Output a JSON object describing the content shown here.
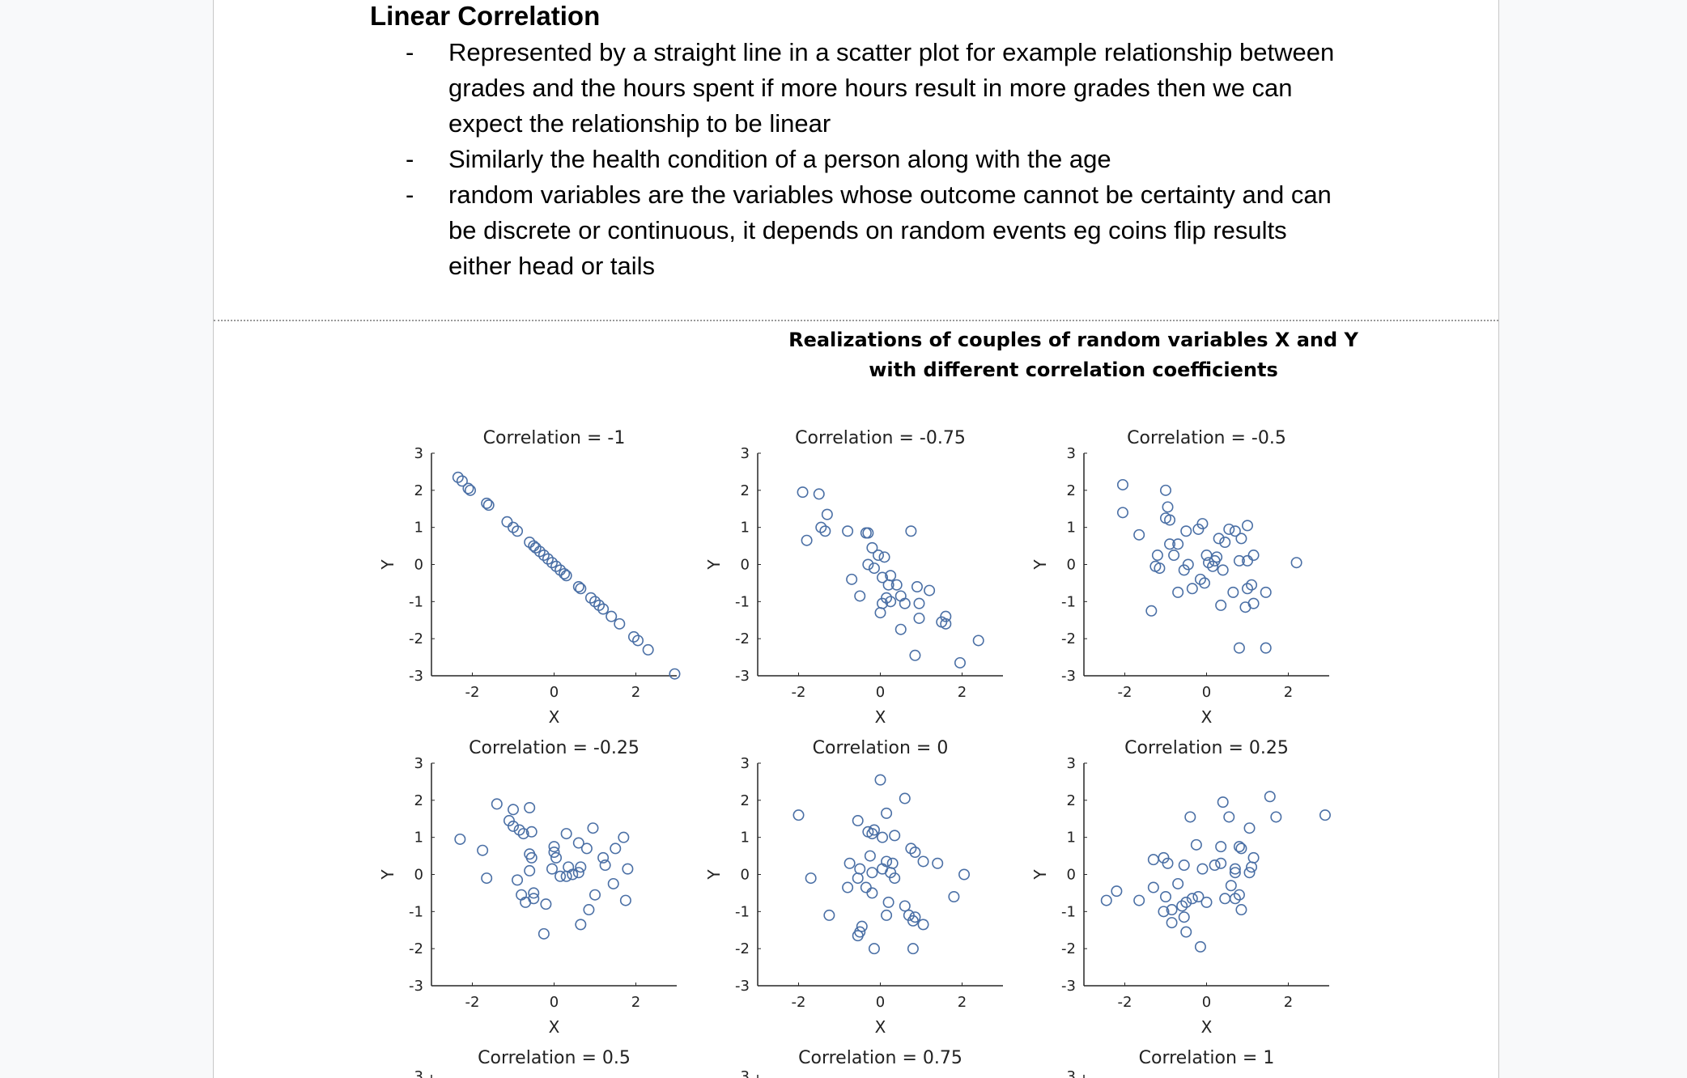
{
  "document": {
    "heading": "Linear Correlation",
    "bullets": [
      "Represented by a straight line in a scatter plot for example relationship between grades and the hours spent if more hours result in more grades then we can expect the relationship to be linear",
      "Similarly the health condition of a person along with the age",
      "random variables are the variables whose outcome cannot be certainty and can be discrete or continuous, it depends on random events eg coins flip results either head or tails"
    ],
    "bullet_marker": "-"
  },
  "chart_data": {
    "type": "scatter",
    "title": "Realizations of couples of random variables X and Y",
    "subtitle": "with different correlation coefficients",
    "marker_color": "#4a6fa5",
    "xlim": [
      -3,
      3
    ],
    "ylim": [
      -3,
      3
    ],
    "xticks": [
      "-2",
      "0",
      "2"
    ],
    "yticks": [
      "3",
      "2",
      "1",
      "0",
      "-1",
      "-2",
      "-3"
    ],
    "xlabel": "X",
    "ylabel": "Y",
    "panels": [
      {
        "title": "Correlation = -1",
        "points": [
          [
            -2.35,
            2.35
          ],
          [
            -2.25,
            2.25
          ],
          [
            -2.1,
            2.05
          ],
          [
            -2.05,
            2.0
          ],
          [
            -1.65,
            1.65
          ],
          [
            -1.6,
            1.6
          ],
          [
            -1.15,
            1.15
          ],
          [
            -1.0,
            1.0
          ],
          [
            -0.9,
            0.9
          ],
          [
            -0.6,
            0.6
          ],
          [
            -0.5,
            0.5
          ],
          [
            -0.45,
            0.45
          ],
          [
            -0.35,
            0.35
          ],
          [
            -0.25,
            0.25
          ],
          [
            -0.15,
            0.15
          ],
          [
            -0.05,
            0.05
          ],
          [
            0.05,
            -0.05
          ],
          [
            0.15,
            -0.15
          ],
          [
            0.25,
            -0.25
          ],
          [
            0.3,
            -0.3
          ],
          [
            0.6,
            -0.6
          ],
          [
            0.65,
            -0.65
          ],
          [
            0.9,
            -0.9
          ],
          [
            1.0,
            -1.0
          ],
          [
            1.1,
            -1.1
          ],
          [
            1.2,
            -1.2
          ],
          [
            1.4,
            -1.4
          ],
          [
            1.6,
            -1.6
          ],
          [
            1.95,
            -1.95
          ],
          [
            2.05,
            -2.05
          ],
          [
            2.3,
            -2.3
          ],
          [
            2.95,
            -2.95
          ]
        ]
      },
      {
        "title": "Correlation = -0.75",
        "points": [
          [
            -1.9,
            1.95
          ],
          [
            -1.5,
            1.9
          ],
          [
            -1.3,
            1.35
          ],
          [
            -1.45,
            1.0
          ],
          [
            -1.35,
            0.9
          ],
          [
            -1.8,
            0.65
          ],
          [
            -0.8,
            0.9
          ],
          [
            -0.35,
            0.85
          ],
          [
            -0.3,
            0.85
          ],
          [
            0.75,
            0.9
          ],
          [
            -0.2,
            0.45
          ],
          [
            -0.05,
            0.25
          ],
          [
            0.1,
            0.2
          ],
          [
            -0.3,
            0.0
          ],
          [
            -0.15,
            -0.1
          ],
          [
            0.25,
            -0.3
          ],
          [
            0.05,
            -0.35
          ],
          [
            -0.7,
            -0.4
          ],
          [
            0.4,
            -0.55
          ],
          [
            0.2,
            -0.55
          ],
          [
            0.9,
            -0.6
          ],
          [
            1.2,
            -0.7
          ],
          [
            -0.5,
            -0.85
          ],
          [
            0.5,
            -0.85
          ],
          [
            0.15,
            -0.9
          ],
          [
            0.05,
            -1.05
          ],
          [
            0.25,
            -1.0
          ],
          [
            0.6,
            -1.05
          ],
          [
            0.0,
            -1.3
          ],
          [
            0.95,
            -1.05
          ],
          [
            0.95,
            -1.45
          ],
          [
            1.6,
            -1.4
          ],
          [
            1.5,
            -1.55
          ],
          [
            1.6,
            -1.6
          ],
          [
            0.5,
            -1.75
          ],
          [
            0.85,
            -2.45
          ],
          [
            2.4,
            -2.05
          ],
          [
            1.95,
            -2.65
          ]
        ]
      },
      {
        "title": "Correlation = -0.5",
        "points": [
          [
            -2.05,
            2.15
          ],
          [
            -1.0,
            2.0
          ],
          [
            -2.05,
            1.4
          ],
          [
            -0.95,
            1.55
          ],
          [
            -1.0,
            1.25
          ],
          [
            -0.9,
            1.2
          ],
          [
            -1.65,
            0.8
          ],
          [
            -0.5,
            0.9
          ],
          [
            -0.2,
            0.95
          ],
          [
            -0.1,
            1.1
          ],
          [
            0.55,
            0.95
          ],
          [
            0.7,
            0.9
          ],
          [
            1.0,
            1.05
          ],
          [
            0.3,
            0.7
          ],
          [
            0.45,
            0.6
          ],
          [
            0.85,
            0.7
          ],
          [
            -0.7,
            0.55
          ],
          [
            -0.9,
            0.55
          ],
          [
            -1.2,
            0.25
          ],
          [
            -0.8,
            0.25
          ],
          [
            0.0,
            0.25
          ],
          [
            0.2,
            0.1
          ],
          [
            0.25,
            0.2
          ],
          [
            1.15,
            0.25
          ],
          [
            -1.15,
            -0.1
          ],
          [
            -1.25,
            -0.05
          ],
          [
            -0.45,
            0.0
          ],
          [
            -0.55,
            -0.15
          ],
          [
            0.05,
            0.05
          ],
          [
            0.15,
            -0.05
          ],
          [
            0.4,
            -0.15
          ],
          [
            0.8,
            0.1
          ],
          [
            1.0,
            0.1
          ],
          [
            2.2,
            0.05
          ],
          [
            -0.15,
            -0.4
          ],
          [
            -0.05,
            -0.5
          ],
          [
            -0.35,
            -0.65
          ],
          [
            -0.7,
            -0.75
          ],
          [
            1.1,
            -0.55
          ],
          [
            1.0,
            -0.65
          ],
          [
            1.45,
            -0.75
          ],
          [
            0.65,
            -0.75
          ],
          [
            0.35,
            -1.1
          ],
          [
            0.95,
            -1.15
          ],
          [
            1.15,
            -1.05
          ],
          [
            -1.35,
            -1.25
          ],
          [
            0.8,
            -2.25
          ],
          [
            1.45,
            -2.25
          ]
        ]
      },
      {
        "title": "Correlation = -0.25",
        "points": [
          [
            -1.4,
            1.9
          ],
          [
            -1.0,
            1.75
          ],
          [
            -0.6,
            1.8
          ],
          [
            -1.1,
            1.45
          ],
          [
            -1.0,
            1.3
          ],
          [
            -0.85,
            1.2
          ],
          [
            -0.75,
            1.1
          ],
          [
            -0.55,
            1.15
          ],
          [
            0.3,
            1.1
          ],
          [
            0.95,
            1.25
          ],
          [
            1.7,
            1.0
          ],
          [
            -2.3,
            0.95
          ],
          [
            -1.75,
            0.65
          ],
          [
            -0.6,
            0.55
          ],
          [
            -0.55,
            0.45
          ],
          [
            0.0,
            0.75
          ],
          [
            0.0,
            0.6
          ],
          [
            0.05,
            0.45
          ],
          [
            0.6,
            0.85
          ],
          [
            0.8,
            0.7
          ],
          [
            1.2,
            0.45
          ],
          [
            1.5,
            0.7
          ],
          [
            -0.6,
            0.1
          ],
          [
            -0.05,
            0.15
          ],
          [
            0.35,
            0.2
          ],
          [
            0.45,
            0.0
          ],
          [
            0.65,
            0.2
          ],
          [
            1.25,
            0.25
          ],
          [
            1.8,
            0.15
          ],
          [
            -1.65,
            -0.1
          ],
          [
            -0.9,
            -0.15
          ],
          [
            0.15,
            -0.05
          ],
          [
            0.3,
            -0.05
          ],
          [
            0.6,
            0.05
          ],
          [
            -0.5,
            -0.5
          ],
          [
            -0.8,
            -0.55
          ],
          [
            -0.7,
            -0.75
          ],
          [
            -0.5,
            -0.65
          ],
          [
            -0.2,
            -0.8
          ],
          [
            1.45,
            -0.25
          ],
          [
            1.0,
            -0.55
          ],
          [
            1.75,
            -0.7
          ],
          [
            0.85,
            -0.95
          ],
          [
            0.65,
            -1.35
          ],
          [
            -0.25,
            -1.6
          ]
        ]
      },
      {
        "title": "Correlation = 0",
        "points": [
          [
            0.0,
            2.55
          ],
          [
            0.6,
            2.05
          ],
          [
            -2.0,
            1.6
          ],
          [
            0.15,
            1.65
          ],
          [
            -0.55,
            1.45
          ],
          [
            -0.3,
            1.15
          ],
          [
            -0.2,
            1.1
          ],
          [
            -0.15,
            1.2
          ],
          [
            0.05,
            1.0
          ],
          [
            0.35,
            1.05
          ],
          [
            0.75,
            0.7
          ],
          [
            0.85,
            0.6
          ],
          [
            -0.25,
            0.5
          ],
          [
            0.15,
            0.35
          ],
          [
            -0.75,
            0.3
          ],
          [
            0.3,
            0.3
          ],
          [
            1.05,
            0.35
          ],
          [
            1.4,
            0.3
          ],
          [
            -0.5,
            0.15
          ],
          [
            -0.2,
            0.05
          ],
          [
            0.05,
            0.15
          ],
          [
            0.25,
            0.05
          ],
          [
            0.35,
            -0.1
          ],
          [
            2.05,
            0.0
          ],
          [
            -1.7,
            -0.1
          ],
          [
            -0.55,
            -0.1
          ],
          [
            -0.35,
            -0.35
          ],
          [
            -0.2,
            -0.5
          ],
          [
            -0.8,
            -0.35
          ],
          [
            1.8,
            -0.6
          ],
          [
            0.2,
            -0.75
          ],
          [
            0.6,
            -0.85
          ],
          [
            0.15,
            -1.1
          ],
          [
            0.7,
            -1.1
          ],
          [
            0.85,
            -1.15
          ],
          [
            0.8,
            -1.25
          ],
          [
            -1.25,
            -1.1
          ],
          [
            -0.45,
            -1.4
          ],
          [
            1.05,
            -1.35
          ],
          [
            -0.5,
            -1.55
          ],
          [
            -0.55,
            -1.65
          ],
          [
            -0.15,
            -2.0
          ],
          [
            0.8,
            -2.0
          ]
        ]
      },
      {
        "title": "Correlation = 0.25",
        "points": [
          [
            1.55,
            2.1
          ],
          [
            0.4,
            1.95
          ],
          [
            -0.4,
            1.55
          ],
          [
            0.55,
            1.55
          ],
          [
            1.7,
            1.55
          ],
          [
            2.9,
            1.6
          ],
          [
            1.05,
            1.25
          ],
          [
            -0.25,
            0.8
          ],
          [
            0.35,
            0.75
          ],
          [
            0.8,
            0.75
          ],
          [
            0.85,
            0.7
          ],
          [
            -1.3,
            0.4
          ],
          [
            -1.05,
            0.45
          ],
          [
            -0.95,
            0.3
          ],
          [
            0.2,
            0.25
          ],
          [
            0.35,
            0.3
          ],
          [
            1.15,
            0.45
          ],
          [
            -0.55,
            0.25
          ],
          [
            -0.1,
            0.15
          ],
          [
            0.7,
            0.15
          ],
          [
            0.7,
            0.05
          ],
          [
            1.05,
            0.05
          ],
          [
            1.1,
            0.2
          ],
          [
            -1.3,
            -0.35
          ],
          [
            -0.7,
            -0.25
          ],
          [
            0.6,
            -0.3
          ],
          [
            -2.45,
            -0.7
          ],
          [
            -2.2,
            -0.45
          ],
          [
            -1.65,
            -0.7
          ],
          [
            -1.0,
            -0.6
          ],
          [
            -0.85,
            -0.95
          ],
          [
            -0.6,
            -0.85
          ],
          [
            -0.5,
            -0.75
          ],
          [
            -0.35,
            -0.65
          ],
          [
            -0.2,
            -0.6
          ],
          [
            0.0,
            -0.75
          ],
          [
            0.45,
            -0.65
          ],
          [
            0.7,
            -0.65
          ],
          [
            0.8,
            -0.55
          ],
          [
            -1.05,
            -1.0
          ],
          [
            -0.85,
            -1.3
          ],
          [
            -0.55,
            -1.15
          ],
          [
            0.85,
            -0.95
          ],
          [
            -0.5,
            -1.55
          ],
          [
            -0.15,
            -1.95
          ]
        ]
      }
    ],
    "partial_row_titles": [
      "Correlation = 0.5",
      "Correlation = 0.75",
      "Correlation = 1"
    ],
    "partial_row_ytick": "3"
  }
}
